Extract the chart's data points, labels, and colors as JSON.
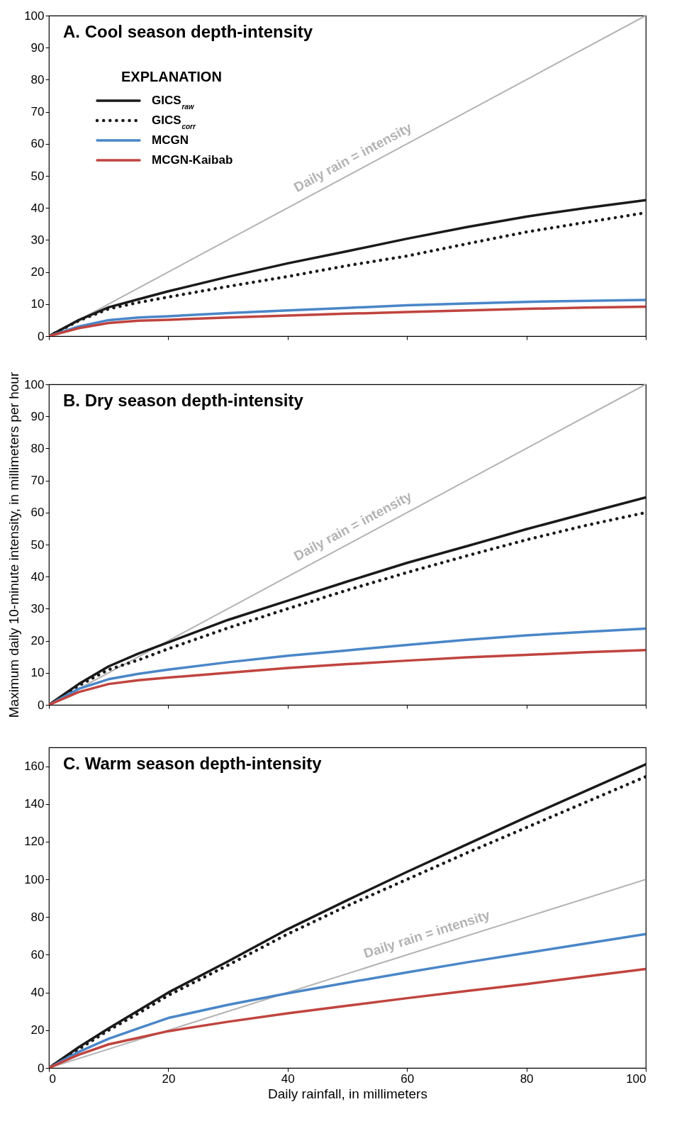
{
  "chart_data": [
    {
      "type": "line",
      "title": "A. Cool season depth-intensity",
      "legend": "top left",
      "legend_title": "EXPLANATION",
      "tick_labels": "y",
      "xlim": [
        0,
        100
      ],
      "xticks": [
        0,
        20,
        40,
        60,
        80,
        100
      ],
      "ylim": [
        0,
        100
      ],
      "yticks": [
        0,
        10,
        20,
        30,
        40,
        50,
        60,
        70,
        80,
        90,
        100
      ],
      "annotations": [
        "Daily rain = intensity"
      ],
      "series": [
        {
          "x": [
            0,
            100
          ],
          "values": [
            0,
            100
          ],
          "color": "#b3b3b3",
          "line_style": "solid"
        },
        {
          "name": "GICS$_{raw}$",
          "color": "#1a1a1a",
          "line_style": "solid",
          "x": [
            0,
            5,
            10,
            15,
            20,
            30,
            40,
            50,
            60,
            70,
            80,
            90,
            100
          ],
          "values": [
            0,
            5,
            9,
            11.5,
            14,
            18.5,
            22.7,
            26.5,
            30.4,
            34,
            37.3,
            40,
            42.4
          ]
        },
        {
          "name": "GICS$_{corr}$",
          "color": "#1a1a1a",
          "line_style": "dotted",
          "x": [
            0,
            5,
            10,
            15,
            20,
            30,
            40,
            50,
            60,
            70,
            80,
            90,
            100
          ],
          "values": [
            0,
            4.8,
            8.5,
            10.5,
            12.2,
            15.5,
            18.6,
            22,
            25,
            28.8,
            32.5,
            35.5,
            38.5
          ]
        },
        {
          "name": "MCGN",
          "color": "#4a86c8",
          "line_style": "solid",
          "x": [
            0,
            5,
            10,
            15,
            20,
            30,
            40,
            50,
            60,
            70,
            80,
            90,
            100
          ],
          "values": [
            0,
            3,
            5,
            5.8,
            6.2,
            7.2,
            8,
            8.8,
            9.6,
            10.2,
            10.7,
            11,
            11.3
          ]
        },
        {
          "name": "MCGN-Kaibab",
          "color": "#c0443f",
          "line_style": "solid",
          "x": [
            0,
            5,
            10,
            15,
            20,
            30,
            40,
            50,
            60,
            70,
            80,
            90,
            100
          ],
          "values": [
            0,
            2.5,
            4.1,
            4.8,
            5.1,
            5.8,
            6.4,
            7,
            7.5,
            8,
            8.5,
            8.9,
            9.2
          ]
        }
      ]
    },
    {
      "type": "line",
      "title": "B. Dry season depth-intensity",
      "ylabel": "Maximum daily 10-minute intensity, in millimeters per hour",
      "tick_labels": "y",
      "xlim": [
        0,
        100
      ],
      "xticks": [
        0,
        20,
        40,
        60,
        80,
        100
      ],
      "ylim": [
        0,
        100
      ],
      "yticks": [
        0,
        10,
        20,
        30,
        40,
        50,
        60,
        70,
        80,
        90,
        100
      ],
      "annotations": [
        "Daily rain = intensity"
      ],
      "series": [
        {
          "x": [
            0,
            100
          ],
          "values": [
            0,
            100
          ],
          "color": "#b3b3b3",
          "line_style": "solid"
        },
        {
          "name": "GICS$_{raw}$",
          "color": "#1a1a1a",
          "line_style": "solid",
          "x": [
            0,
            5,
            10,
            15,
            20,
            30,
            40,
            50,
            60,
            70,
            80,
            90,
            100
          ],
          "values": [
            0,
            6.5,
            12,
            16,
            19.5,
            26.5,
            32.5,
            38.5,
            44.3,
            49.5,
            54.8,
            59.8,
            64.7
          ]
        },
        {
          "name": "GICS$_{corr}$",
          "color": "#1a1a1a",
          "line_style": "dotted",
          "x": [
            0,
            5,
            10,
            15,
            20,
            30,
            40,
            50,
            60,
            70,
            80,
            90,
            100
          ],
          "values": [
            0,
            6,
            11,
            14,
            17.5,
            24,
            30,
            35.8,
            41.3,
            46.5,
            51.5,
            56,
            60
          ]
        },
        {
          "name": "MCGN",
          "color": "#4a86c8",
          "line_style": "solid",
          "x": [
            0,
            5,
            10,
            15,
            20,
            30,
            40,
            50,
            60,
            70,
            80,
            90,
            100
          ],
          "values": [
            0,
            5,
            8,
            9.7,
            11,
            13.3,
            15.3,
            17,
            18.7,
            20.3,
            21.7,
            22.8,
            23.8
          ]
        },
        {
          "name": "MCGN-Kaibab",
          "color": "#c0443f",
          "line_style": "solid",
          "x": [
            0,
            5,
            10,
            15,
            20,
            30,
            40,
            50,
            60,
            70,
            80,
            90,
            100
          ],
          "values": [
            0,
            4,
            6.5,
            7.7,
            8.5,
            10,
            11.5,
            12.7,
            13.8,
            14.8,
            15.6,
            16.4,
            17.1
          ]
        }
      ]
    },
    {
      "type": "line",
      "title": "C. Warm season depth-intensity",
      "xlabel": "Daily rainfall, in millimeters",
      "xlim": [
        0,
        100
      ],
      "xticks": [
        0,
        20,
        40,
        60,
        80,
        100
      ],
      "ylim": [
        0,
        170
      ],
      "yticks": [
        0,
        20,
        40,
        60,
        80,
        100,
        120,
        140,
        160
      ],
      "annotations": [
        "Daily rain = intensity"
      ],
      "series": [
        {
          "x": [
            0,
            100
          ],
          "values": [
            0,
            100
          ],
          "color": "#b3b3b3",
          "line_style": "solid"
        },
        {
          "name": "GICS$_{raw}$",
          "color": "#1a1a1a",
          "line_style": "solid",
          "x": [
            0,
            5,
            10,
            15,
            20,
            30,
            40,
            50,
            60,
            70,
            80,
            90,
            100
          ],
          "values": [
            0,
            11,
            21,
            30.5,
            40,
            56.5,
            73.6,
            89,
            104,
            118.5,
            133,
            147,
            161
          ]
        },
        {
          "name": "GICS$_{corr}$",
          "color": "#1a1a1a",
          "line_style": "dotted",
          "x": [
            0,
            5,
            10,
            15,
            20,
            30,
            40,
            50,
            60,
            70,
            80,
            90,
            100
          ],
          "values": [
            0,
            10,
            20,
            29,
            38.5,
            54.5,
            71,
            86,
            100,
            114,
            127.5,
            141,
            154.5
          ]
        },
        {
          "name": "MCGN",
          "color": "#4a86c8",
          "line_style": "solid",
          "x": [
            0,
            5,
            10,
            15,
            20,
            30,
            40,
            50,
            60,
            70,
            80,
            90,
            100
          ],
          "values": [
            0,
            8.5,
            15.5,
            21,
            26.5,
            33.5,
            39.6,
            45.2,
            50.7,
            56,
            61,
            66,
            71
          ]
        },
        {
          "name": "MCGN-Kaibab",
          "color": "#c0443f",
          "line_style": "solid",
          "x": [
            0,
            5,
            10,
            15,
            20,
            30,
            40,
            50,
            60,
            70,
            80,
            90,
            100
          ],
          "values": [
            0,
            7,
            12.5,
            16,
            19.5,
            24.5,
            29,
            33,
            37,
            40.8,
            44.5,
            48.5,
            52.5
          ]
        }
      ]
    }
  ]
}
